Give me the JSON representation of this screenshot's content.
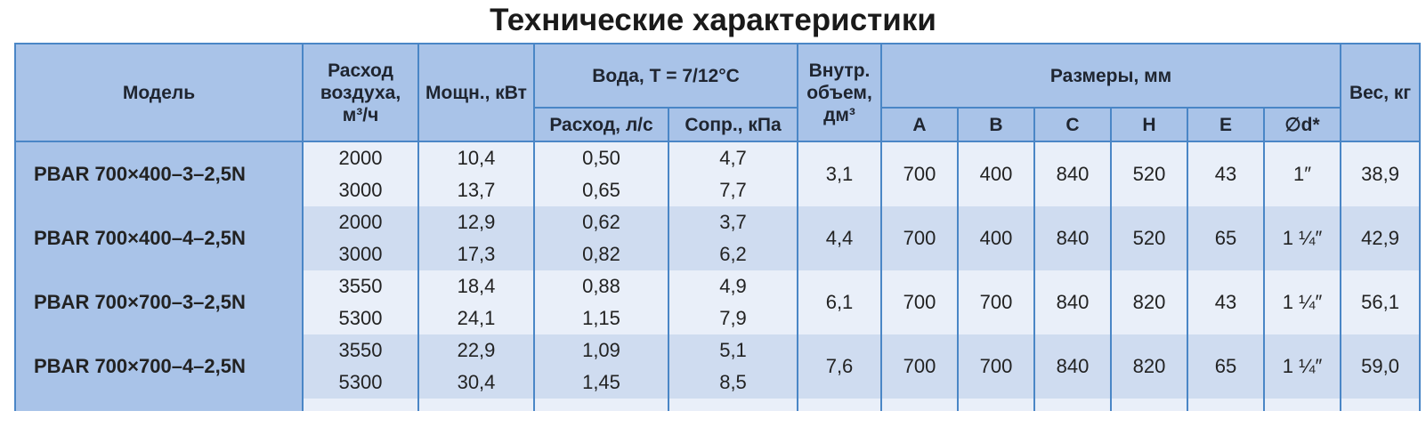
{
  "title": "Технические характеристики",
  "table": {
    "header": {
      "model": "Модель",
      "air_flow": "Расход воздуха, м³/ч",
      "power": "Мощн., кВт",
      "water": "Вода, T = 7/12°C",
      "water_flow": "Расход, л/с",
      "water_resistance": "Сопр., кПа",
      "volume": "Внутр. объем, дм³",
      "dimensions": "Размеры, мм",
      "dimension_columns": [
        "A",
        "B",
        "C",
        "H",
        "E",
        "∅d*"
      ],
      "weight": "Вес, кг"
    },
    "rows": [
      {
        "model": "PBAR 700×400–3–2,5N",
        "modes": [
          {
            "air_flow": "2000",
            "power": "10,4",
            "water_flow": "0,50",
            "water_resistance": "4,7"
          },
          {
            "air_flow": "3000",
            "power": "13,7",
            "water_flow": "0,65",
            "water_resistance": "7,7"
          }
        ],
        "volume": "3,1",
        "dimensions": [
          "700",
          "400",
          "840",
          "520",
          "43",
          "1″"
        ],
        "weight": "38,9"
      },
      {
        "model": "PBAR 700×400–4–2,5N",
        "modes": [
          {
            "air_flow": "2000",
            "power": "12,9",
            "water_flow": "0,62",
            "water_resistance": "3,7"
          },
          {
            "air_flow": "3000",
            "power": "17,3",
            "water_flow": "0,82",
            "water_resistance": "6,2"
          }
        ],
        "volume": "4,4",
        "dimensions": [
          "700",
          "400",
          "840",
          "520",
          "65",
          "1 ¼″"
        ],
        "weight": "42,9"
      },
      {
        "model": "PBAR 700×700–3–2,5N",
        "modes": [
          {
            "air_flow": "3550",
            "power": "18,4",
            "water_flow": "0,88",
            "water_resistance": "4,9"
          },
          {
            "air_flow": "5300",
            "power": "24,1",
            "water_flow": "1,15",
            "water_resistance": "7,9"
          }
        ],
        "volume": "6,1",
        "dimensions": [
          "700",
          "700",
          "840",
          "820",
          "43",
          "1 ¼″"
        ],
        "weight": "56,1"
      },
      {
        "model": "PBAR 700×700–4–2,5N",
        "modes": [
          {
            "air_flow": "3550",
            "power": "22,9",
            "water_flow": "1,09",
            "water_resistance": "5,1"
          },
          {
            "air_flow": "5300",
            "power": "30,4",
            "water_flow": "1,45",
            "water_resistance": "8,5"
          }
        ],
        "volume": "7,6",
        "dimensions": [
          "700",
          "700",
          "840",
          "820",
          "65",
          "1 ¼″"
        ],
        "weight": "59,0"
      }
    ]
  }
}
